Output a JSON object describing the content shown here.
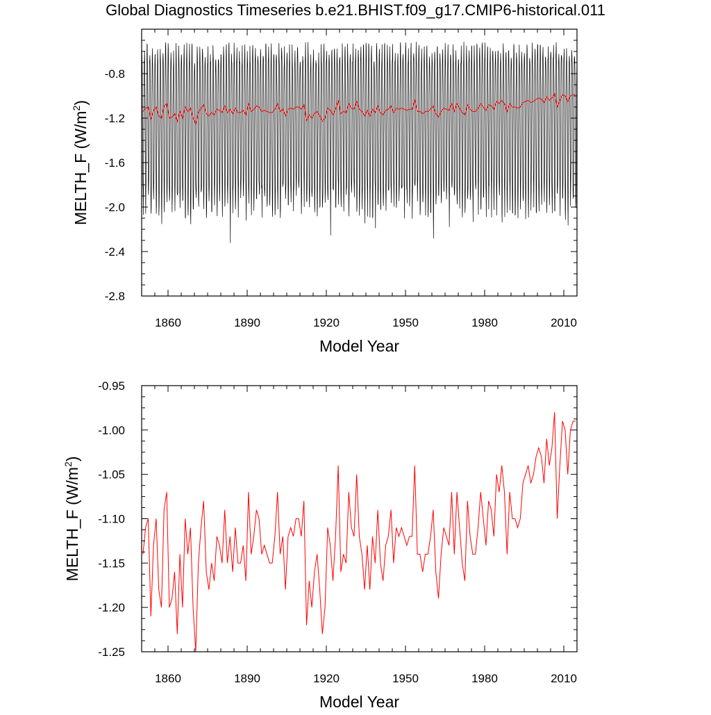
{
  "title": "Global Diagnostics Timeseries b.e21.BHIST.f09_g17.CMIP6-historical.011",
  "chart_data": [
    {
      "type": "line",
      "ylabel_main": "MELTH_F (W/m",
      "ylabel_sup": "2",
      "ylabel_close": ")",
      "xlabel": "Model Year",
      "xlim": [
        1850,
        2015
      ],
      "ylim": [
        -2.8,
        -0.4
      ],
      "xticks": [
        1860,
        1890,
        1920,
        1950,
        1980,
        2010
      ],
      "yticks": [
        -2.8,
        -2.4,
        -2.0,
        -1.6,
        -1.2,
        -0.8
      ],
      "yticklabels": [
        "-2.8",
        "-2.4",
        "-2.0",
        "-1.6",
        "-1.2",
        "-0.8"
      ],
      "monthly_series": {
        "color": "#000000",
        "description_range": [
          -2.44,
          -0.43
        ],
        "winter_max_typical": -0.55,
        "summer_min_typical": -2.05
      },
      "annual_series": {
        "color": "#ff0000",
        "x": [
          1850,
          1851,
          1852,
          1853,
          1854,
          1855,
          1856,
          1857,
          1858,
          1859,
          1860,
          1861,
          1862,
          1863,
          1864,
          1865,
          1866,
          1867,
          1868,
          1869,
          1870,
          1871,
          1872,
          1873,
          1874,
          1875,
          1876,
          1877,
          1878,
          1879,
          1880,
          1881,
          1882,
          1883,
          1884,
          1885,
          1886,
          1887,
          1888,
          1889,
          1890,
          1891,
          1892,
          1893,
          1894,
          1895,
          1896,
          1897,
          1898,
          1899,
          1900,
          1901,
          1902,
          1903,
          1904,
          1905,
          1906,
          1907,
          1908,
          1909,
          1910,
          1911,
          1912,
          1913,
          1914,
          1915,
          1916,
          1917,
          1918,
          1919,
          1920,
          1921,
          1922,
          1923,
          1924,
          1925,
          1926,
          1927,
          1928,
          1929,
          1930,
          1931,
          1932,
          1933,
          1934,
          1935,
          1936,
          1937,
          1938,
          1939,
          1940,
          1941,
          1942,
          1943,
          1944,
          1945,
          1946,
          1947,
          1948,
          1949,
          1950,
          1951,
          1952,
          1953,
          1954,
          1955,
          1956,
          1957,
          1958,
          1959,
          1960,
          1961,
          1962,
          1963,
          1964,
          1965,
          1966,
          1967,
          1968,
          1969,
          1970,
          1971,
          1972,
          1973,
          1974,
          1975,
          1976,
          1977,
          1978,
          1979,
          1980,
          1981,
          1982,
          1983,
          1984,
          1985,
          1986,
          1987,
          1988,
          1989,
          1990,
          1991,
          1992,
          1993,
          1994,
          1995,
          1996,
          1997,
          1998,
          1999,
          2000,
          2001,
          2002,
          2003,
          2004,
          2005,
          2006,
          2007,
          2008,
          2009,
          2010,
          2011,
          2012,
          2013,
          2014
        ],
        "y": [
          -1.14,
          -1.11,
          -1.1,
          -1.21,
          -1.13,
          -1.1,
          -1.18,
          -1.2,
          -1.09,
          -1.07,
          -1.2,
          -1.19,
          -1.16,
          -1.23,
          -1.14,
          -1.2,
          -1.1,
          -1.14,
          -1.11,
          -1.2,
          -1.25,
          -1.15,
          -1.11,
          -1.08,
          -1.16,
          -1.18,
          -1.15,
          -1.17,
          -1.12,
          -1.13,
          -1.15,
          -1.09,
          -1.15,
          -1.12,
          -1.16,
          -1.11,
          -1.15,
          -1.15,
          -1.13,
          -1.17,
          -1.07,
          -1.14,
          -1.12,
          -1.09,
          -1.1,
          -1.14,
          -1.13,
          -1.14,
          -1.15,
          -1.15,
          -1.12,
          -1.07,
          -1.14,
          -1.12,
          -1.18,
          -1.12,
          -1.11,
          -1.12,
          -1.1,
          -1.1,
          -1.12,
          -1.08,
          -1.22,
          -1.17,
          -1.2,
          -1.16,
          -1.14,
          -1.18,
          -1.23,
          -1.2,
          -1.11,
          -1.13,
          -1.17,
          -1.12,
          -1.04,
          -1.16,
          -1.14,
          -1.15,
          -1.07,
          -1.11,
          -1.12,
          -1.05,
          -1.12,
          -1.14,
          -1.18,
          -1.13,
          -1.18,
          -1.12,
          -1.15,
          -1.09,
          -1.15,
          -1.17,
          -1.13,
          -1.12,
          -1.09,
          -1.15,
          -1.11,
          -1.12,
          -1.11,
          -1.12,
          -1.13,
          -1.12,
          -1.12,
          -1.04,
          -1.14,
          -1.14,
          -1.16,
          -1.14,
          -1.14,
          -1.12,
          -1.09,
          -1.16,
          -1.19,
          -1.14,
          -1.11,
          -1.12,
          -1.13,
          -1.07,
          -1.14,
          -1.07,
          -1.11,
          -1.15,
          -1.17,
          -1.08,
          -1.12,
          -1.14,
          -1.14,
          -1.11,
          -1.07,
          -1.1,
          -1.13,
          -1.08,
          -1.09,
          -1.12,
          -1.05,
          -1.07,
          -1.04,
          -1.07,
          -1.14,
          -1.07,
          -1.1,
          -1.1,
          -1.11,
          -1.1,
          -1.06,
          -1.05,
          -1.04,
          -1.06,
          -1.05,
          -1.03,
          -1.02,
          -1.03,
          -1.06,
          -1.01,
          -1.04,
          -1.02,
          -0.98,
          -1.1,
          -1.04,
          -0.99,
          -1.0,
          -1.05,
          -1.0,
          -0.99,
          -0.99
        ]
      }
    },
    {
      "type": "line",
      "ylabel_main": "MELTH_F (W/m",
      "ylabel_sup": "2",
      "ylabel_close": ")",
      "xlabel": "Model Year",
      "xlim": [
        1850,
        2015
      ],
      "ylim": [
        -1.25,
        -0.95
      ],
      "xticks": [
        1860,
        1890,
        1920,
        1950,
        1980,
        2010
      ],
      "yticks": [
        -1.25,
        -1.2,
        -1.15,
        -1.1,
        -1.05,
        -1.0,
        -0.95
      ],
      "yticklabels": [
        "-1.25",
        "-1.20",
        "-1.15",
        "-1.10",
        "-1.05",
        "-1.00",
        "-0.95"
      ],
      "series_color": "#ff0000"
    }
  ]
}
